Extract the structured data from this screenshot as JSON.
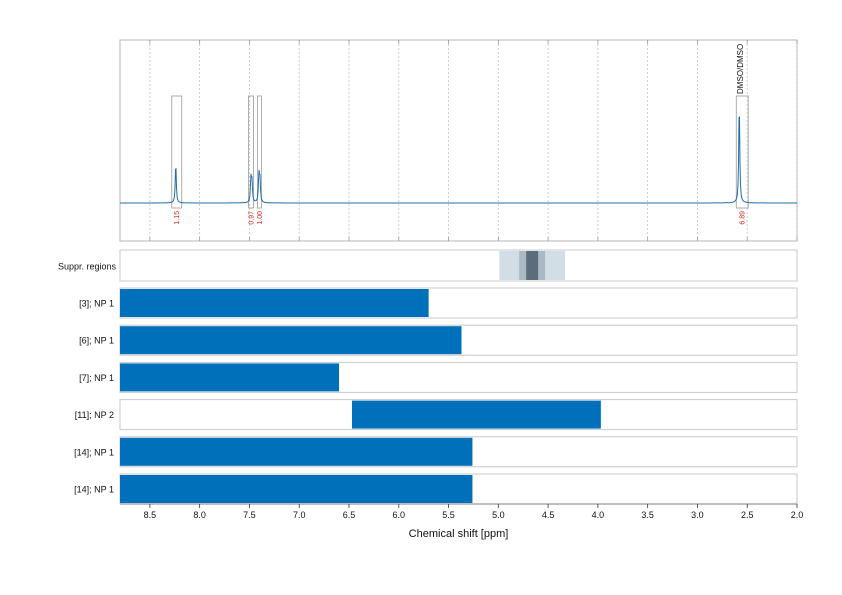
{
  "chart_data": {
    "type": "nmr-spectrum-with-region-bars",
    "xlabel": "Chemical shift [ppm]",
    "xlim": [
      8.8,
      2.0
    ],
    "xticks": [
      8.5,
      8.0,
      7.5,
      7.0,
      6.5,
      6.0,
      5.5,
      5.0,
      4.5,
      4.0,
      3.5,
      3.0,
      2.5,
      2.0
    ],
    "xtick_labels": [
      "8.5",
      "8.0",
      "7.5",
      "7.0",
      "6.5",
      "6.0",
      "5.5",
      "5.0",
      "4.5",
      "4.0",
      "3.5",
      "3.0",
      "2.5",
      "2.0"
    ],
    "grid": true,
    "spectrum": {
      "line_color": "#1f6fa8",
      "peaks": [
        {
          "ppm": 8.24,
          "height": 0.38
        },
        {
          "ppm": 7.485,
          "height": 0.22
        },
        {
          "ppm": 7.475,
          "height": 0.2
        },
        {
          "ppm": 7.405,
          "height": 0.25
        },
        {
          "ppm": 7.395,
          "height": 0.22
        },
        {
          "ppm": 2.58,
          "height": 0.96
        }
      ],
      "integrations": [
        {
          "label": "1.15",
          "from": 8.28,
          "to": 8.18
        },
        {
          "label": "0.97",
          "from": 7.51,
          "to": 7.46
        },
        {
          "label": "1.00",
          "from": 7.42,
          "to": 7.38
        },
        {
          "label": "6.89",
          "from": 2.61,
          "to": 2.49
        }
      ],
      "integration_label_color": "#e0201b",
      "annotation": {
        "label": "DMSO/DMSO",
        "ppm": 2.55
      }
    },
    "suppression": {
      "label": "Suppr. regions",
      "bands": [
        {
          "from": 4.99,
          "to": 4.33,
          "color": "#d3dde6"
        },
        {
          "from": 4.79,
          "to": 4.53,
          "color": "#a9b9c6"
        },
        {
          "from": 4.72,
          "to": 4.6,
          "color": "#5a6d7c"
        }
      ]
    },
    "bars": [
      {
        "label": "[3]; NP 1",
        "from": 8.8,
        "to": 5.7
      },
      {
        "label": "[6]; NP 1",
        "from": 8.8,
        "to": 5.37
      },
      {
        "label": "[7]; NP 1",
        "from": 8.8,
        "to": 6.6
      },
      {
        "label": "[11]; NP 2",
        "from": 6.47,
        "to": 3.97
      },
      {
        "label": "[14]; NP 1",
        "from": 8.8,
        "to": 5.26
      },
      {
        "label": "[14]; NP 1",
        "from": 8.8,
        "to": 5.26
      }
    ],
    "bar_color": "#0070bb",
    "panel_border_color": "#c8c8c8"
  }
}
